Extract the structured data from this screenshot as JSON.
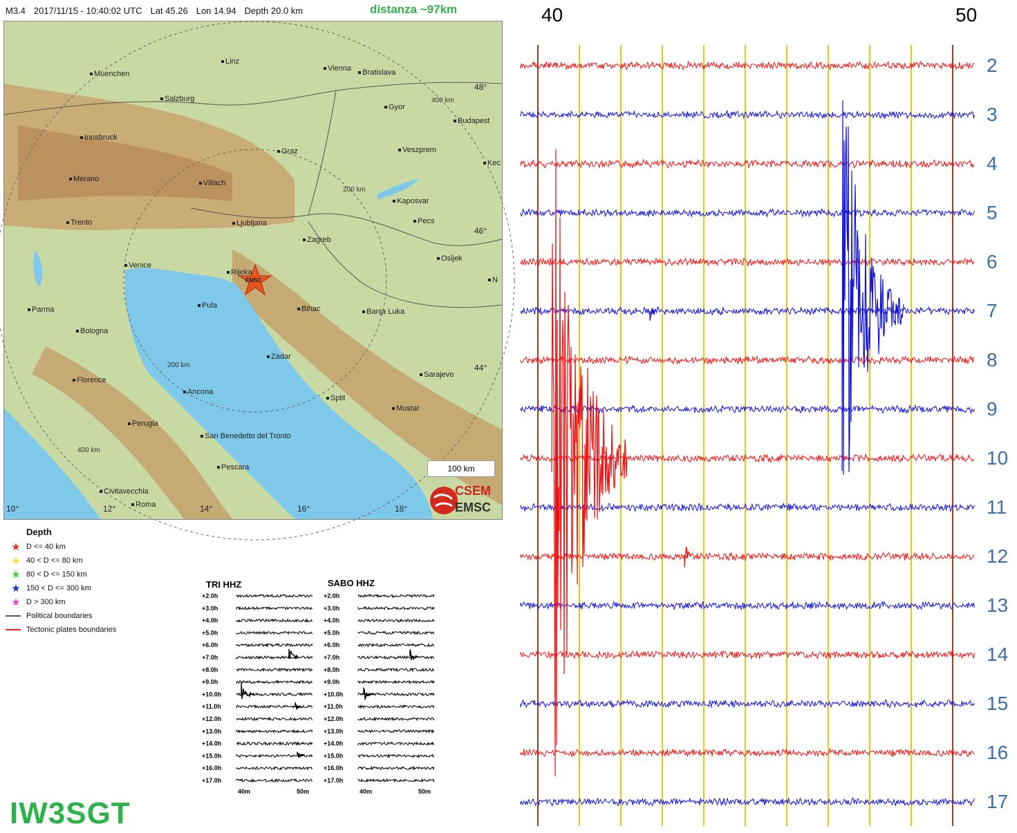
{
  "header": {
    "magnitude": "M3.4",
    "datetime": "2017/11/15 - 10:40:02 UTC",
    "lat": "Lat 45.26",
    "lon": "Lon 14.94",
    "depth": "Depth 20.0 km",
    "distance": "distanza ~97km"
  },
  "map": {
    "cities": [
      "Linz",
      "Vienna",
      "Bratislava",
      "Muenchen",
      "Salzburg",
      "Gyor",
      "Budapest",
      "Innsbruck",
      "Graz",
      "Veszprem",
      "Merano",
      "Villach",
      "Kaposvar",
      "Trento",
      "Ljubljana",
      "Pecs",
      "Zagreb",
      "Venice",
      "Osijek",
      "Rijeka",
      "Pula",
      "Bihac",
      "Banja Luka",
      "Parma",
      "Bologna",
      "Zadar",
      "Sarajevo",
      "Florence",
      "Ancona",
      "Split",
      "Mostar",
      "Perugia",
      "San Benedetto del Tronto",
      "Pescara",
      "Civitavecchia",
      "Roma",
      "Kec",
      "N"
    ],
    "lon_labels": [
      "10°",
      "12°",
      "14°",
      "16°",
      "18°"
    ],
    "lat_labels": [
      "48°",
      "46°",
      "44°"
    ],
    "ring_labels": [
      "400 km",
      "200 km",
      "200 km",
      "400 km"
    ],
    "epicenter_label": "EMSC",
    "scale": "100 km",
    "logo_top": "CSEM",
    "logo_bottom": "EMSC"
  },
  "legend": {
    "title": "Depth",
    "items": [
      {
        "label": "D <= 40 km",
        "color": "#e8241c"
      },
      {
        "label": "40 < D <= 80 km",
        "color": "#f0e531"
      },
      {
        "label": "80 < D <= 150 km",
        "color": "#3fd13f"
      },
      {
        "label": "150 < D <= 300 km",
        "color": "#1b2ec9"
      },
      {
        "label": "D > 300 km",
        "color": "#e23fd6"
      }
    ],
    "lines": [
      {
        "label": "Political boundaries",
        "color": "#555555"
      },
      {
        "label": "Tectonic plates boundaries",
        "color": "#e8241c"
      }
    ]
  },
  "mini_seismograms": [
    {
      "title": "TRI HHZ",
      "rows": [
        "+2.0h",
        "+3.0h",
        "+4.0h",
        "+5.0h",
        "+6.0h",
        "+7.0h",
        "+8.0h",
        "+9.0h",
        "+10.0h",
        "+11.0h",
        "+12.0h",
        "+13.0h",
        "+14.0h",
        "+15.0h",
        "+16.0h",
        "+17.0h"
      ],
      "x_labels": [
        "40m",
        "50m"
      ]
    },
    {
      "title": "SABO HHZ",
      "rows": [
        "+2.0h",
        "+3.0h",
        "+4.0h",
        "+5.0h",
        "+6.0h",
        "+7.0h",
        "+8.0h",
        "+9.0h",
        "+10.0h",
        "+11.0h",
        "+12.0h",
        "+13.0h",
        "+14.0h",
        "+15.0h",
        "+16.0h",
        "+17.0h"
      ],
      "x_labels": [
        "40m",
        "50m"
      ]
    }
  ],
  "callsign": "IW3SGT",
  "seismogram": {
    "top_labels": [
      "40",
      "50"
    ],
    "hours": [
      "2",
      "3",
      "4",
      "5",
      "6",
      "7",
      "8",
      "9",
      "10",
      "11",
      "12",
      "13",
      "14",
      "15",
      "16",
      "17"
    ],
    "colors": {
      "odd_trace": "#ee1111",
      "even_trace": "#1111dd",
      "minute_line": "#f1c40f",
      "marker_line": "#b03a10",
      "hour_label": "#3b6ea5"
    }
  }
}
